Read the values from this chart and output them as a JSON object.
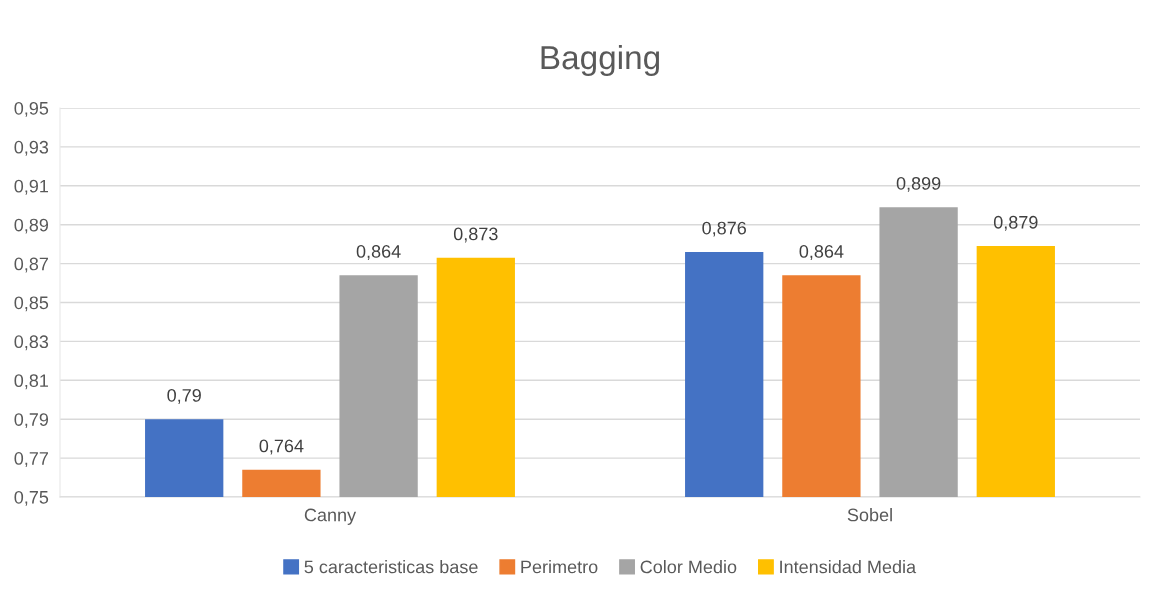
{
  "chart_data": {
    "type": "bar",
    "title": "Bagging",
    "categories": [
      "Canny",
      "Sobel"
    ],
    "series": [
      {
        "name": "5 caracteristicas base",
        "color": "#4472c4",
        "values": [
          0.79,
          0.876
        ],
        "value_labels": [
          "0,79",
          "0,876"
        ]
      },
      {
        "name": "Perimetro",
        "color": "#ed7d31",
        "values": [
          0.764,
          0.864
        ],
        "value_labels": [
          "0,764",
          "0,864"
        ]
      },
      {
        "name": "Color Medio",
        "color": "#a5a5a5",
        "values": [
          0.864,
          0.899
        ],
        "value_labels": [
          "0,864",
          "0,899"
        ]
      },
      {
        "name": "Intensidad Media",
        "color": "#ffc000",
        "values": [
          0.873,
          0.879
        ],
        "value_labels": [
          "0,873",
          "0,879"
        ]
      }
    ],
    "ylim": [
      0.75,
      0.95
    ],
    "yticks": [
      {
        "value": 0.75,
        "label": "0,75"
      },
      {
        "value": 0.77,
        "label": "0,77"
      },
      {
        "value": 0.79,
        "label": "0,79"
      },
      {
        "value": 0.81,
        "label": "0,81"
      },
      {
        "value": 0.83,
        "label": "0,83"
      },
      {
        "value": 0.85,
        "label": "0,85"
      },
      {
        "value": 0.87,
        "label": "0,87"
      },
      {
        "value": 0.89,
        "label": "0,89"
      },
      {
        "value": 0.91,
        "label": "0,91"
      },
      {
        "value": 0.93,
        "label": "0,93"
      },
      {
        "value": 0.95,
        "label": "0,95"
      }
    ],
    "grid": "y",
    "legend": "bottom"
  }
}
